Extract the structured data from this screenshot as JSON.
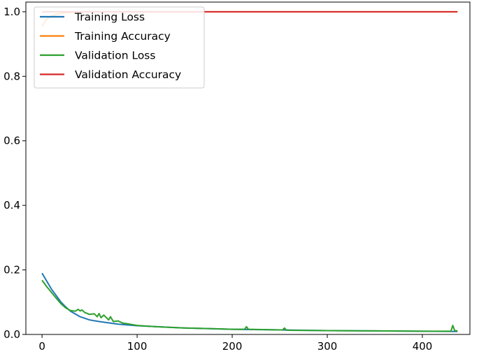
{
  "chart_data": {
    "type": "line",
    "title": "",
    "xlabel": "",
    "ylabel": "",
    "xlim": [
      -17,
      450
    ],
    "ylim": [
      0.0,
      1.03
    ],
    "xticks": [
      0,
      100,
      200,
      300,
      400
    ],
    "yticks": [
      0.0,
      0.2,
      0.4,
      0.6,
      0.8,
      1.0
    ],
    "xtick_labels": [
      "0",
      "100",
      "200",
      "300",
      "400"
    ],
    "ytick_labels": [
      "0.0",
      "0.2",
      "0.4",
      "0.6",
      "0.8",
      "1.0"
    ],
    "grid": false,
    "legend_position": "top-left",
    "series": [
      {
        "name": "Training Loss",
        "color": "#1f77b4",
        "x": [
          0,
          5,
          10,
          15,
          20,
          25,
          30,
          40,
          50,
          60,
          80,
          100,
          150,
          200,
          250,
          300,
          350,
          400,
          437
        ],
        "y": [
          0.19,
          0.165,
          0.14,
          0.12,
          0.1,
          0.085,
          0.072,
          0.055,
          0.045,
          0.04,
          0.032,
          0.027,
          0.02,
          0.016,
          0.014,
          0.012,
          0.011,
          0.01,
          0.009
        ]
      },
      {
        "name": "Training Accuracy",
        "color": "#ff7f0e",
        "x": [
          0,
          3,
          6,
          10,
          15,
          20,
          25,
          30,
          40,
          60,
          100,
          200,
          300,
          400,
          437
        ],
        "y": [
          0.955,
          0.97,
          0.98,
          0.987,
          0.992,
          0.995,
          0.997,
          0.998,
          0.999,
          1.0,
          1.0,
          1.0,
          1.0,
          1.0,
          1.0
        ]
      },
      {
        "name": "Validation Loss",
        "color": "#2ca02c",
        "x": [
          0,
          5,
          10,
          15,
          20,
          25,
          30,
          35,
          38,
          40,
          42,
          45,
          50,
          55,
          58,
          60,
          62,
          65,
          70,
          72,
          75,
          80,
          85,
          90,
          100,
          120,
          150,
          180,
          200,
          213,
          215,
          217,
          250,
          253,
          255,
          257,
          300,
          350,
          400,
          430,
          432,
          434,
          437
        ],
        "y": [
          0.168,
          0.148,
          0.13,
          0.112,
          0.095,
          0.082,
          0.074,
          0.072,
          0.078,
          0.073,
          0.076,
          0.068,
          0.062,
          0.064,
          0.055,
          0.065,
          0.052,
          0.06,
          0.045,
          0.055,
          0.04,
          0.042,
          0.035,
          0.033,
          0.028,
          0.024,
          0.02,
          0.018,
          0.016,
          0.016,
          0.024,
          0.016,
          0.014,
          0.014,
          0.02,
          0.013,
          0.012,
          0.011,
          0.01,
          0.01,
          0.028,
          0.012,
          0.011
        ]
      },
      {
        "name": "Validation Accuracy",
        "color": "#d62728",
        "x": [
          0,
          2,
          4,
          437
        ],
        "y": [
          0.998,
          1.0,
          1.0,
          1.0
        ]
      }
    ]
  }
}
